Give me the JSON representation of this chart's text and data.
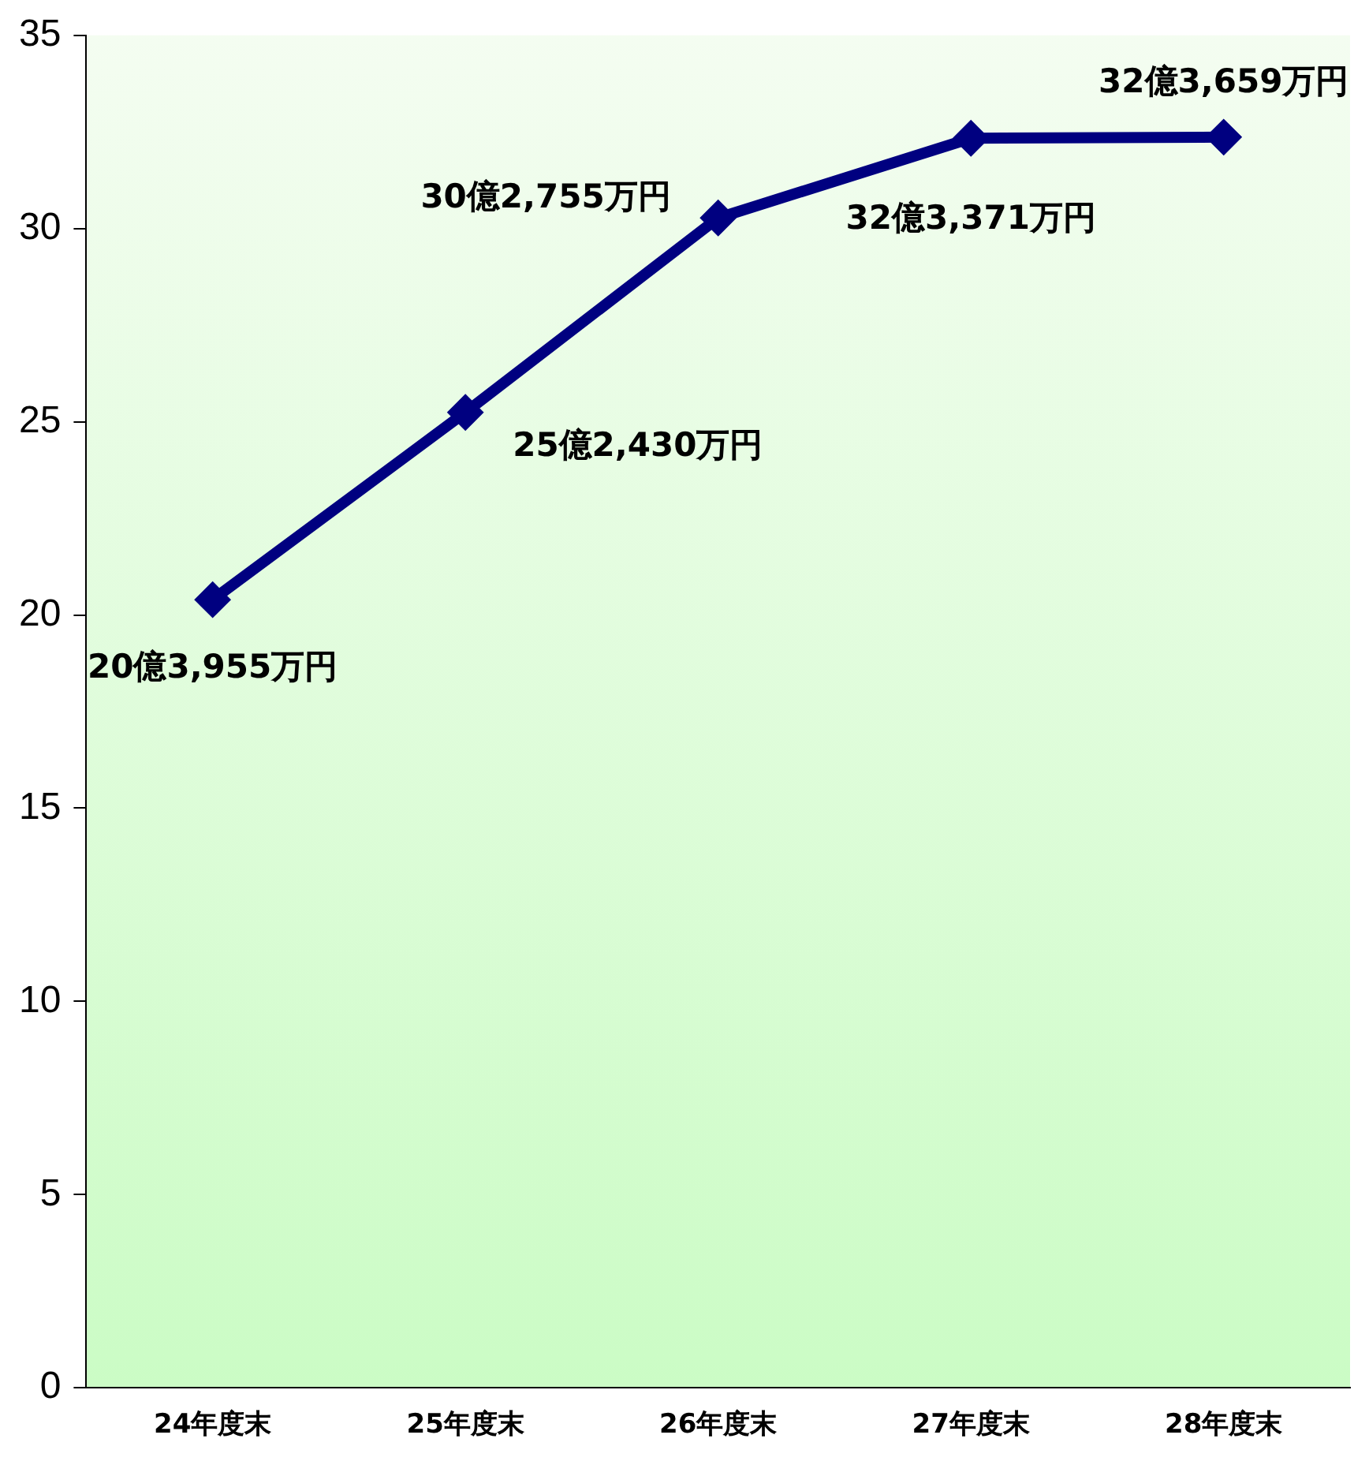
{
  "chart_data": {
    "type": "line",
    "categories": [
      "24年度末",
      "25年度末",
      "26年度末",
      "27年度末",
      "28年度末"
    ],
    "series": [
      {
        "color": "#000080",
        "values": [
          20.3955,
          25.243,
          30.2755,
          32.3371,
          32.3659
        ],
        "value_labels": [
          "20億3,955万円",
          "25億2,430万円",
          "30億2,755万円",
          "32億3,371万円",
          "32億3,659万円"
        ]
      }
    ],
    "ylim": [
      0,
      35
    ],
    "yticks": [
      0,
      5,
      10,
      15,
      20,
      25,
      30,
      35
    ],
    "grid": false,
    "legend": false,
    "marker": "diamond",
    "line_style": "solid"
  }
}
